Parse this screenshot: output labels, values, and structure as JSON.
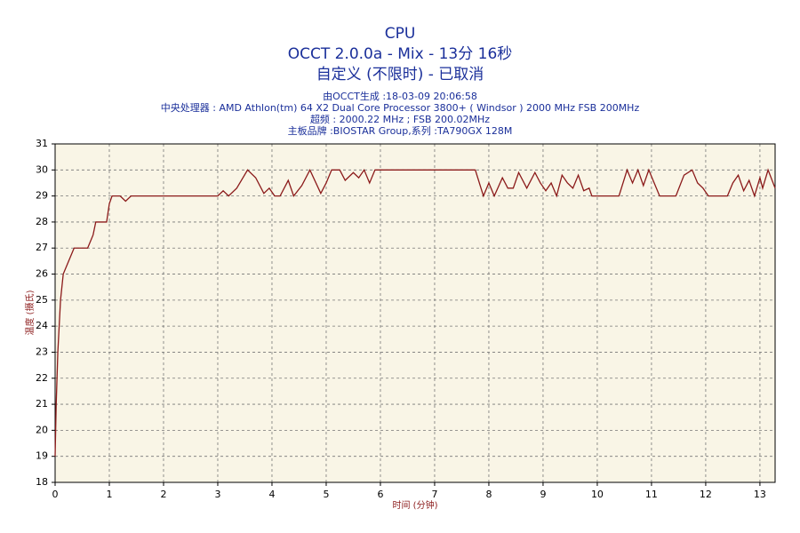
{
  "chart_data": {
    "type": "line",
    "title": "CPU",
    "subtitle": "OCCT 2.0.0a - Mix - 13分 16秒",
    "subtitle2": "自定义 (不限时) - 已取消",
    "info": [
      "由OCCT生成 :18-03-09 20:06:58",
      "中央处理器 : AMD Athlon(tm) 64 X2 Dual Core Processor 3800+ ( Windsor ) 2000 MHz FSB 200MHz",
      "超频 : 2000.22 MHz ; FSB 200.02MHz",
      "主板品牌 :BIOSTAR Group,系列 :TA790GX 128M"
    ],
    "xlabel": "时间 (分钟)",
    "ylabel": "温度 (摄氏)",
    "x": [
      0,
      0.02,
      0.05,
      0.1,
      0.15,
      0.25,
      0.35,
      0.6,
      0.7,
      0.75,
      0.95,
      1.0,
      1.05,
      1.2,
      1.3,
      1.4,
      3.0,
      3.1,
      3.2,
      3.35,
      3.55,
      3.7,
      3.85,
      3.95,
      4.05,
      4.15,
      4.3,
      4.4,
      4.55,
      4.7,
      4.9,
      5.0,
      5.1,
      5.25,
      5.35,
      5.5,
      5.6,
      5.7,
      5.8,
      5.9,
      7.75,
      7.9,
      8.0,
      8.1,
      8.25,
      8.35,
      8.45,
      8.55,
      8.7,
      8.85,
      8.95,
      9.05,
      9.15,
      9.25,
      9.35,
      9.45,
      9.55,
      9.65,
      9.75,
      9.85,
      9.9,
      10.4,
      10.55,
      10.65,
      10.75,
      10.85,
      10.95,
      11.05,
      11.15,
      11.45,
      11.6,
      11.75,
      11.85,
      11.95,
      12.05,
      12.4,
      12.5,
      12.6,
      12.7,
      12.8,
      12.9,
      13.0,
      13.05,
      13.15,
      13.28
    ],
    "series": [
      {
        "name": "CPU",
        "color": "#8b1a1a",
        "values": [
          19,
          21,
          23,
          25,
          26,
          26.5,
          27,
          27,
          27.5,
          28,
          28,
          28.7,
          29,
          29,
          28.8,
          29,
          29,
          29.2,
          29,
          29.3,
          30,
          29.7,
          29.1,
          29.3,
          29,
          29,
          29.6,
          29,
          29.4,
          30,
          29.1,
          29.5,
          30,
          30,
          29.6,
          29.9,
          29.7,
          30,
          29.5,
          30,
          30,
          29,
          29.5,
          29,
          29.7,
          29.3,
          29.3,
          29.9,
          29.3,
          29.9,
          29.5,
          29.2,
          29.5,
          29,
          29.8,
          29.5,
          29.3,
          29.8,
          29.2,
          29.3,
          29,
          29,
          30,
          29.5,
          30,
          29.4,
          30,
          29.5,
          29,
          29,
          29.8,
          30,
          29.5,
          29.3,
          29,
          29,
          29.5,
          29.8,
          29.2,
          29.6,
          29,
          29.7,
          29.3,
          30,
          29.3
        ]
      }
    ],
    "xlim": [
      0,
      13.28
    ],
    "ylim": [
      18,
      31
    ],
    "xticks": [
      0,
      1,
      2,
      3,
      4,
      5,
      6,
      7,
      8,
      9,
      10,
      11,
      12,
      13
    ],
    "yticks": [
      18,
      19,
      20,
      21,
      22,
      23,
      24,
      25,
      26,
      27,
      28,
      29,
      30,
      31
    ],
    "grid": true
  }
}
